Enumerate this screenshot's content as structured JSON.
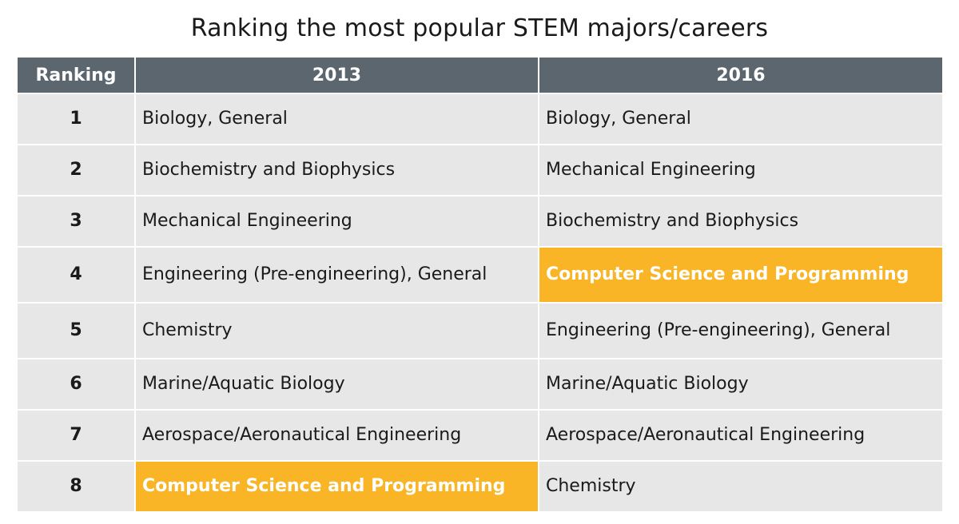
{
  "title": "Ranking the most popular STEM majors/careers",
  "colors": {
    "header_bg": "#5b666e",
    "cell_bg": "#e7e7e7",
    "highlight": "#f9b526"
  },
  "chart_data": {
    "type": "table",
    "title": "Ranking the most popular STEM majors/careers",
    "columns": [
      "Ranking",
      "2013",
      "2016"
    ],
    "highlight_text": "Computer Science and Programming",
    "rows": [
      {
        "rank": "1",
        "y2013": "Biology, General",
        "y2016": "Biology, General"
      },
      {
        "rank": "2",
        "y2013": "Biochemistry and Biophysics",
        "y2016": "Mechanical Engineering"
      },
      {
        "rank": "3",
        "y2013": "Mechanical Engineering",
        "y2016": "Biochemistry and Biophysics"
      },
      {
        "rank": "4",
        "y2013": "Engineering (Pre-engineering), General",
        "y2016": "Computer Science and Programming"
      },
      {
        "rank": "5",
        "y2013": "Chemistry",
        "y2016": "Engineering (Pre-engineering), General"
      },
      {
        "rank": "6",
        "y2013": "Marine/Aquatic Biology",
        "y2016": "Marine/Aquatic Biology"
      },
      {
        "rank": "7",
        "y2013": "Aerospace/Aeronautical Engineering",
        "y2016": "Aerospace/Aeronautical Engineering"
      },
      {
        "rank": "8",
        "y2013": "Computer Science and Programming",
        "y2016": "Chemistry"
      }
    ]
  }
}
